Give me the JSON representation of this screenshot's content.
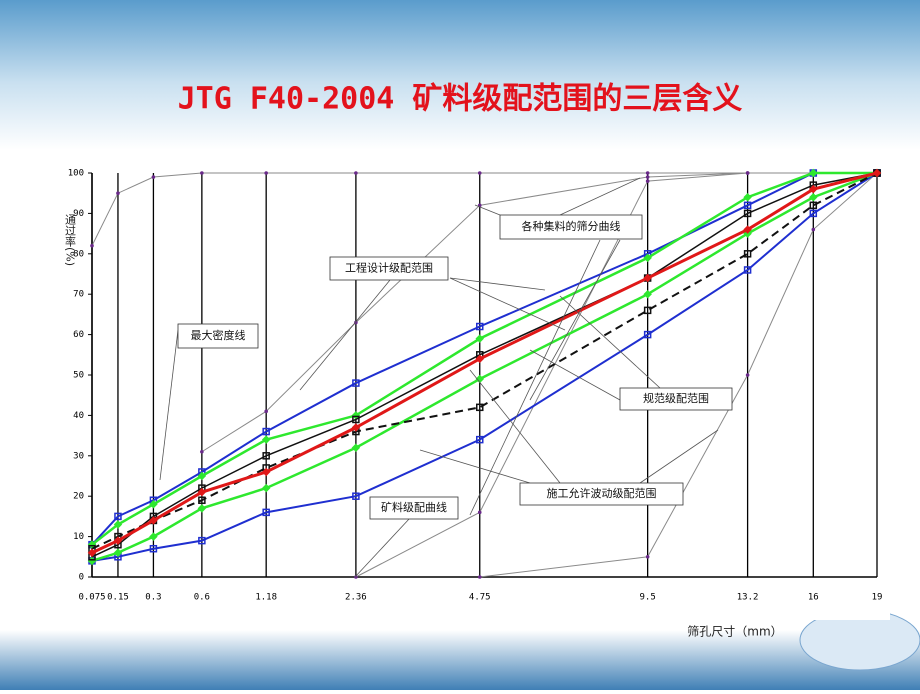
{
  "chart_data": {
    "type": "line",
    "title": "JTG F40-2004 矿料级配范围的三层含义",
    "x_label": "筛孔尺寸（mm）",
    "y_label": "通过率(%)",
    "x": [
      0.075,
      0.15,
      0.3,
      0.6,
      1.18,
      2.36,
      4.75,
      9.5,
      13.2,
      16,
      19
    ],
    "xlim": [
      0.075,
      19
    ],
    "xticks": [
      0.075,
      0.15,
      0.3,
      0.6,
      1.18,
      2.36,
      4.75,
      9.5,
      13.2,
      16,
      19
    ],
    "xscale": "power",
    "xexponent": 0.45,
    "ylim": [
      0,
      100
    ],
    "yticks": [
      0,
      10,
      20,
      30,
      40,
      50,
      60,
      70,
      80,
      90,
      100
    ],
    "grid": "x",
    "series": [
      {
        "color": "#8a8a8a",
        "width": 1,
        "marker": "dot",
        "values": [
          82,
          95,
          99,
          100,
          100,
          100,
          100,
          100,
          100,
          100,
          100
        ]
      },
      {
        "color": "#8a8a8a",
        "width": 1,
        "marker": "dot",
        "values": [
          null,
          null,
          null,
          31,
          41,
          63,
          92,
          99,
          100,
          100,
          100
        ]
      },
      {
        "color": "#8a8a8a",
        "width": 1,
        "marker": "dot",
        "values": [
          null,
          null,
          null,
          null,
          null,
          0,
          16,
          98,
          100,
          100,
          100
        ]
      },
      {
        "color": "#8a8a8a",
        "width": 1,
        "marker": "dot",
        "values": [
          null,
          null,
          null,
          null,
          null,
          null,
          0,
          5,
          50,
          86,
          100
        ]
      },
      {
        "color": "#1f2fd0",
        "width": 2,
        "marker": "square",
        "values": [
          8,
          15,
          19,
          26,
          36,
          48,
          62,
          80,
          92,
          100,
          100
        ]
      },
      {
        "color": "#1f2fd0",
        "width": 2,
        "marker": "square",
        "values": [
          4,
          5,
          7,
          9,
          16,
          20,
          34,
          60,
          76,
          90,
          100
        ]
      },
      {
        "color": "#2ee82e",
        "width": 2.5,
        "marker": "diamond",
        "values": [
          8,
          13,
          18,
          25,
          34,
          40,
          59,
          79,
          94,
          100,
          100
        ]
      },
      {
        "color": "#2ee82e",
        "width": 2.5,
        "marker": "diamond",
        "values": [
          4,
          6,
          10,
          17,
          22,
          32,
          49,
          70,
          85,
          94,
          100
        ]
      },
      {
        "color": "#111111",
        "width": 2,
        "marker": "square",
        "dash": true,
        "values": [
          7,
          10,
          14,
          19,
          27,
          36,
          42,
          66,
          80,
          92,
          100
        ]
      },
      {
        "color": "#111111",
        "width": 1.5,
        "marker": "square",
        "values": [
          5,
          8,
          15,
          22,
          30,
          39,
          55,
          74,
          90,
          97,
          100
        ]
      },
      {
        "color": "#e01818",
        "width": 3,
        "marker": "diamond",
        "values": [
          6,
          9,
          14,
          21,
          26,
          37,
          54,
          74,
          86,
          96,
          100
        ]
      }
    ],
    "annotations": [
      "各种集料的筛分曲线",
      "工程设计级配范围",
      "最大密度线",
      "规范级配范围",
      "矿料级配曲线",
      "施工允许波动级配范围"
    ]
  }
}
